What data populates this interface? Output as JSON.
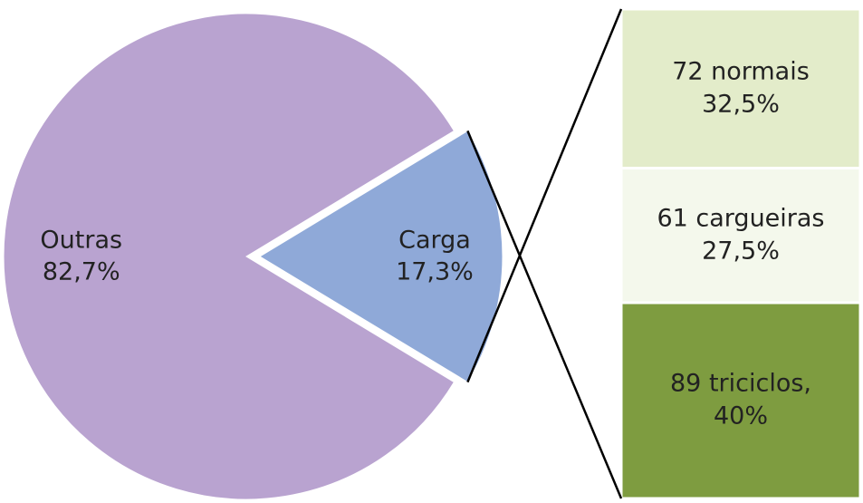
{
  "chart_data": {
    "type": "pie-of-bar",
    "pie": {
      "categories": [
        "Outras",
        "Carga"
      ],
      "values": [
        82.7,
        17.3
      ],
      "value_labels": [
        "82,7%",
        "17,3%"
      ],
      "colors": [
        "#b9a3d0",
        "#8fa9d8"
      ]
    },
    "bar": {
      "categories": [
        "72 normais",
        "61 cargueiras",
        "89 triciclos,"
      ],
      "values": [
        32.5,
        27.5,
        40
      ],
      "value_labels": [
        "32,5%",
        "27,5%",
        "40%"
      ],
      "colors": [
        "#e3ecca",
        "#f4f8ec",
        "#7e9c40"
      ]
    }
  }
}
